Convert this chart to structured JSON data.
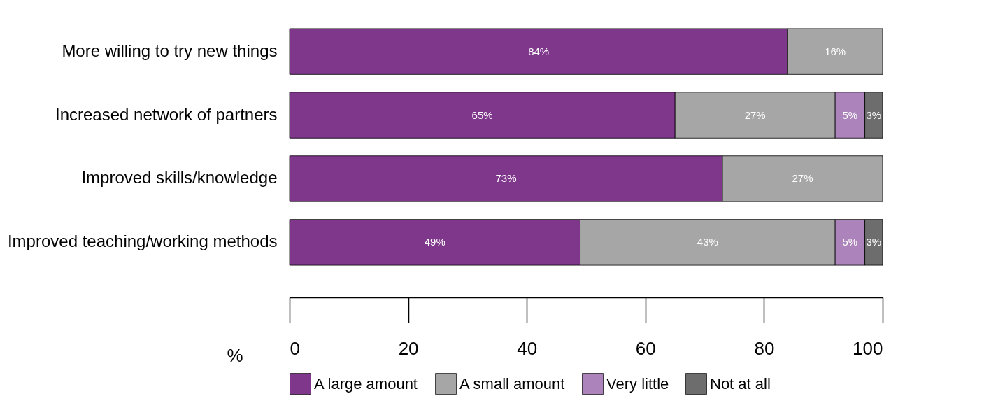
{
  "chart_data": {
    "type": "bar",
    "orientation": "horizontal",
    "stacked": true,
    "xlabel": "%",
    "categories": [
      "More willing to try new things",
      "Increased network of partners",
      "Improved skills/knowledge",
      "Improved teaching/working methods"
    ],
    "series": [
      {
        "name": "A large amount",
        "color": "#7f378b",
        "values": [
          84,
          65,
          73,
          49
        ],
        "value_labels": [
          "84%",
          "65%",
          "73%",
          "49%"
        ]
      },
      {
        "name": "A small amount",
        "color": "#a6a6a6",
        "values": [
          16,
          27,
          27,
          43
        ],
        "value_labels": [
          "16%",
          "27%",
          "27%",
          "43%"
        ]
      },
      {
        "name": "Very little",
        "color": "#ac84bb",
        "values": [
          null,
          5,
          null,
          5
        ],
        "value_labels": [
          null,
          "5%",
          null,
          "5%"
        ]
      },
      {
        "name": "Not at all",
        "color": "#6d6d6d",
        "values": [
          null,
          3,
          null,
          3
        ],
        "value_labels": [
          null,
          "3%",
          null,
          "3%"
        ]
      }
    ],
    "xlim": [
      0,
      100
    ],
    "xticks": [
      0,
      20,
      40,
      60,
      80,
      100
    ],
    "grid": false,
    "legend": "bottom"
  }
}
